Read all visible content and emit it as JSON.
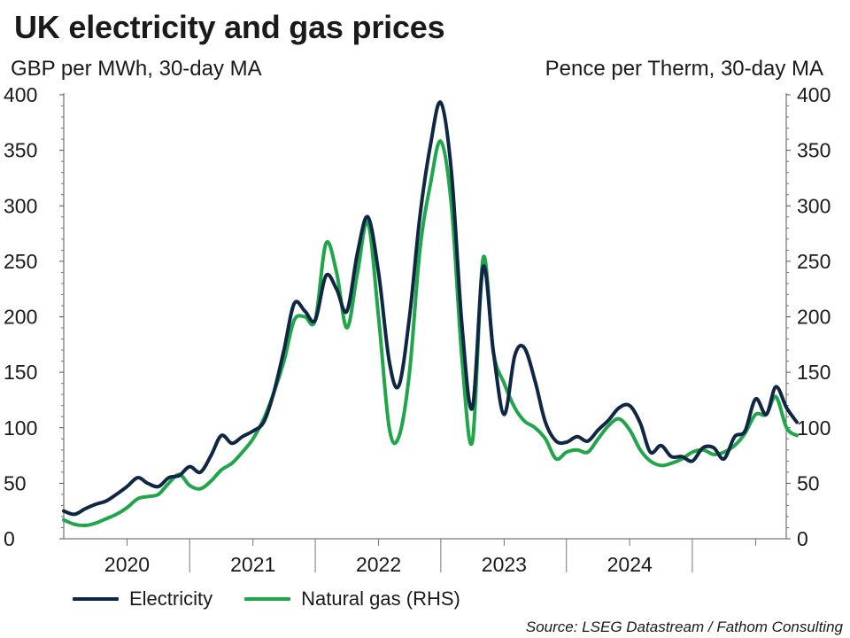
{
  "chart_data": {
    "type": "line",
    "title": "UK electricity and gas prices",
    "y_left_label": "GBP per MWh, 30-day MA",
    "y_right_label": "Pence per Therm, 30-day MA",
    "ylim_left": [
      0,
      400
    ],
    "ylim_right": [
      0,
      400
    ],
    "y_ticks": [
      "0",
      "50",
      "100",
      "150",
      "200",
      "250",
      "300",
      "350",
      "400"
    ],
    "xlim": [
      "2019-07-01",
      "2025-03-31"
    ],
    "x_ticks": [
      {
        "label": "2020",
        "date": "2020-01-01"
      },
      {
        "label": "2021",
        "date": "2021-01-01"
      },
      {
        "label": "2022",
        "date": "2022-01-01"
      },
      {
        "label": "2023",
        "date": "2023-01-01"
      },
      {
        "label": "2024",
        "date": "2024-01-01"
      }
    ],
    "grid": false,
    "legend_position": "bottom",
    "series": [
      {
        "name": "Electricity",
        "axis": "left",
        "color": "#0f2744",
        "points": [
          [
            "2019-07-01",
            25
          ],
          [
            "2019-08-01",
            22
          ],
          [
            "2019-09-01",
            27
          ],
          [
            "2019-10-01",
            31
          ],
          [
            "2019-11-01",
            34
          ],
          [
            "2019-12-01",
            40
          ],
          [
            "2020-01-01",
            47
          ],
          [
            "2020-02-01",
            55
          ],
          [
            "2020-03-01",
            50
          ],
          [
            "2020-04-01",
            47
          ],
          [
            "2020-05-01",
            55
          ],
          [
            "2020-06-01",
            57
          ],
          [
            "2020-07-01",
            65
          ],
          [
            "2020-08-01",
            60
          ],
          [
            "2020-09-01",
            75
          ],
          [
            "2020-10-01",
            93
          ],
          [
            "2020-11-01",
            86
          ],
          [
            "2020-12-01",
            92
          ],
          [
            "2021-01-01",
            97
          ],
          [
            "2021-02-01",
            105
          ],
          [
            "2021-03-01",
            130
          ],
          [
            "2021-04-01",
            170
          ],
          [
            "2021-05-01",
            212
          ],
          [
            "2021-06-01",
            205
          ],
          [
            "2021-07-01",
            197
          ],
          [
            "2021-08-01",
            237
          ],
          [
            "2021-09-01",
            225
          ],
          [
            "2021-10-01",
            205
          ],
          [
            "2021-11-01",
            258
          ],
          [
            "2021-12-01",
            290
          ],
          [
            "2022-01-01",
            240
          ],
          [
            "2022-02-01",
            160
          ],
          [
            "2022-03-01",
            138
          ],
          [
            "2022-04-01",
            200
          ],
          [
            "2022-05-01",
            290
          ],
          [
            "2022-06-01",
            355
          ],
          [
            "2022-07-01",
            393
          ],
          [
            "2022-08-01",
            330
          ],
          [
            "2022-09-01",
            190
          ],
          [
            "2022-10-01",
            118
          ],
          [
            "2022-11-01",
            245
          ],
          [
            "2022-12-01",
            168
          ],
          [
            "2023-01-01",
            112
          ],
          [
            "2023-02-01",
            165
          ],
          [
            "2023-03-01",
            172
          ],
          [
            "2023-04-01",
            142
          ],
          [
            "2023-05-01",
            105
          ],
          [
            "2023-06-01",
            88
          ],
          [
            "2023-07-01",
            87
          ],
          [
            "2023-08-01",
            92
          ],
          [
            "2023-09-01",
            88
          ],
          [
            "2023-10-01",
            98
          ],
          [
            "2023-11-01",
            107
          ],
          [
            "2023-12-01",
            118
          ],
          [
            "2024-01-01",
            120
          ],
          [
            "2024-02-01",
            104
          ],
          [
            "2024-03-01",
            78
          ],
          [
            "2024-04-01",
            84
          ],
          [
            "2024-05-01",
            74
          ],
          [
            "2024-06-01",
            74
          ],
          [
            "2024-07-01",
            70
          ],
          [
            "2024-08-01",
            82
          ],
          [
            "2024-09-01",
            82
          ],
          [
            "2024-10-01",
            72
          ],
          [
            "2024-11-01",
            92
          ],
          [
            "2024-12-01",
            97
          ],
          [
            "2025-01-01",
            126
          ],
          [
            "2025-02-01",
            112
          ],
          [
            "2025-03-01",
            137
          ],
          [
            "2025-04-01",
            118
          ],
          [
            "2025-05-01",
            105
          ]
        ]
      },
      {
        "name": "Natural gas (RHS)",
        "axis": "right",
        "color": "#1fa64a",
        "points": [
          [
            "2019-07-01",
            17
          ],
          [
            "2019-08-01",
            13
          ],
          [
            "2019-09-01",
            12
          ],
          [
            "2019-10-01",
            14
          ],
          [
            "2019-11-01",
            18
          ],
          [
            "2019-12-01",
            22
          ],
          [
            "2020-01-01",
            28
          ],
          [
            "2020-02-01",
            36
          ],
          [
            "2020-03-01",
            38
          ],
          [
            "2020-04-01",
            40
          ],
          [
            "2020-05-01",
            50
          ],
          [
            "2020-06-01",
            58
          ],
          [
            "2020-07-01",
            48
          ],
          [
            "2020-08-01",
            45
          ],
          [
            "2020-09-01",
            52
          ],
          [
            "2020-10-01",
            62
          ],
          [
            "2020-11-01",
            68
          ],
          [
            "2020-12-01",
            78
          ],
          [
            "2021-01-01",
            90
          ],
          [
            "2021-02-01",
            108
          ],
          [
            "2021-03-01",
            130
          ],
          [
            "2021-04-01",
            160
          ],
          [
            "2021-05-01",
            197
          ],
          [
            "2021-06-01",
            200
          ],
          [
            "2021-07-01",
            197
          ],
          [
            "2021-08-01",
            266
          ],
          [
            "2021-09-01",
            240
          ],
          [
            "2021-10-01",
            190
          ],
          [
            "2021-11-01",
            240
          ],
          [
            "2021-12-01",
            285
          ],
          [
            "2022-01-01",
            200
          ],
          [
            "2022-02-01",
            100
          ],
          [
            "2022-03-01",
            92
          ],
          [
            "2022-04-01",
            150
          ],
          [
            "2022-05-01",
            260
          ],
          [
            "2022-06-01",
            320
          ],
          [
            "2022-07-01",
            358
          ],
          [
            "2022-08-01",
            300
          ],
          [
            "2022-09-01",
            160
          ],
          [
            "2022-10-01",
            88
          ],
          [
            "2022-11-01",
            253
          ],
          [
            "2022-12-01",
            168
          ],
          [
            "2023-01-01",
            140
          ],
          [
            "2023-02-01",
            118
          ],
          [
            "2023-03-01",
            106
          ],
          [
            "2023-04-01",
            100
          ],
          [
            "2023-05-01",
            90
          ],
          [
            "2023-06-01",
            72
          ],
          [
            "2023-07-01",
            78
          ],
          [
            "2023-08-01",
            80
          ],
          [
            "2023-09-01",
            78
          ],
          [
            "2023-10-01",
            90
          ],
          [
            "2023-11-01",
            102
          ],
          [
            "2023-12-01",
            108
          ],
          [
            "2024-01-01",
            98
          ],
          [
            "2024-02-01",
            80
          ],
          [
            "2024-03-01",
            70
          ],
          [
            "2024-04-01",
            66
          ],
          [
            "2024-05-01",
            68
          ],
          [
            "2024-06-01",
            72
          ],
          [
            "2024-07-01",
            78
          ],
          [
            "2024-08-01",
            80
          ],
          [
            "2024-09-01",
            76
          ],
          [
            "2024-10-01",
            78
          ],
          [
            "2024-11-01",
            84
          ],
          [
            "2024-12-01",
            95
          ],
          [
            "2025-01-01",
            112
          ],
          [
            "2025-02-01",
            112
          ],
          [
            "2025-03-01",
            128
          ],
          [
            "2025-04-01",
            100
          ],
          [
            "2025-05-01",
            93
          ]
        ]
      }
    ]
  },
  "source_text": "Source: LSEG Datastream / Fathom Consulting"
}
